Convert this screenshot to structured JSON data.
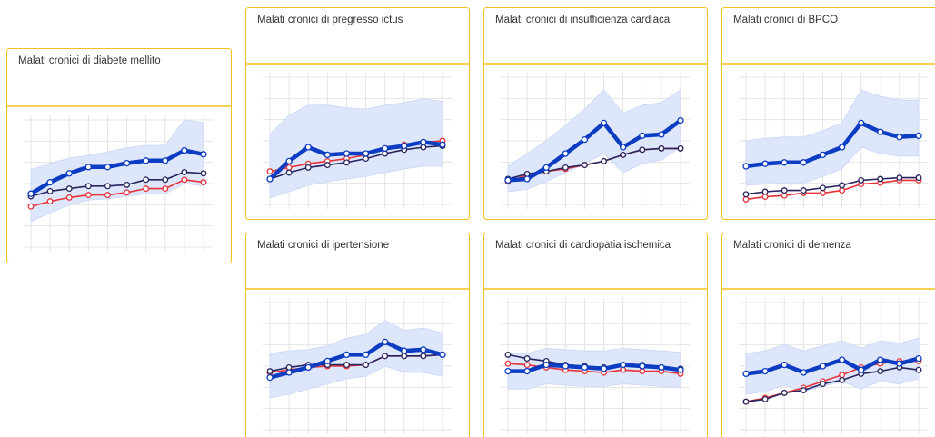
{
  "chart_data": [
    {
      "type": "line",
      "title": "Malati cronici di diabete mellito",
      "categories": [
        null,
        null,
        null,
        null,
        null,
        null,
        null,
        null,
        null,
        null
      ],
      "ylim": [
        0,
        100
      ],
      "band": {
        "color": "#dde6fb",
        "lower": [
          20,
          27,
          33,
          37,
          38,
          40,
          42,
          42,
          50,
          48
        ],
        "upper": [
          61,
          66,
          70,
          72,
          75,
          78,
          80,
          80,
          100,
          98
        ]
      },
      "series": [
        {
          "color": "#0b3cc1",
          "values": [
            42,
            51,
            58,
            63,
            63,
            66,
            68,
            68,
            76,
            73
          ]
        },
        {
          "color": "#27245e",
          "values": [
            40,
            44,
            46,
            48,
            48,
            49,
            53,
            53,
            59,
            58
          ]
        },
        {
          "color": "#e8333a",
          "values": [
            32,
            36,
            39,
            41,
            41,
            43,
            46,
            46,
            53,
            51
          ]
        }
      ]
    },
    {
      "type": "line",
      "title": "Malati cronici di pregresso ictus",
      "categories": [
        null,
        null,
        null,
        null,
        null,
        null,
        null,
        null,
        null,
        null
      ],
      "ylim": [
        0,
        100
      ],
      "band": {
        "color": "#dde6fb",
        "lower": [
          5,
          10,
          15,
          18,
          20,
          22,
          25,
          28,
          30,
          30
        ],
        "upper": [
          55,
          70,
          78,
          78,
          76,
          75,
          78,
          80,
          83,
          81
        ]
      },
      "series": [
        {
          "color": "#0b3cc1",
          "values": [
            20,
            34,
            45,
            39,
            40,
            40,
            44,
            46,
            49,
            47
          ]
        },
        {
          "color": "#27245e",
          "values": [
            20,
            25,
            29,
            31,
            33,
            36,
            40,
            43,
            45,
            46
          ]
        },
        {
          "color": "#e8333a",
          "values": [
            26,
            29,
            32,
            34,
            36,
            39,
            44,
            47,
            49,
            50
          ]
        }
      ]
    },
    {
      "type": "line",
      "title": "Malati cronici di insufficienza cardiaca",
      "categories": [
        null,
        null,
        null,
        null,
        null,
        null,
        null,
        null,
        null,
        null
      ],
      "ylim": [
        0,
        100
      ],
      "band": {
        "color": "#dde6fb",
        "lower": [
          10,
          12,
          18,
          25,
          32,
          40,
          25,
          32,
          35,
          45
        ],
        "upper": [
          30,
          40,
          50,
          62,
          75,
          90,
          72,
          78,
          80,
          90
        ]
      },
      "series": [
        {
          "color": "#0b3cc1",
          "values": [
            19,
            20,
            29,
            40,
            51,
            64,
            45,
            54,
            55,
            66
          ]
        },
        {
          "color": "#27245e",
          "values": [
            20,
            24,
            26,
            29,
            31,
            34,
            39,
            43,
            44,
            44
          ]
        },
        {
          "color": "#e8333a",
          "values": [
            18,
            23,
            26,
            28,
            31,
            34,
            39,
            43,
            44,
            44
          ]
        }
      ]
    },
    {
      "type": "line",
      "title": "Malati cronici di BPCO",
      "categories": [
        null,
        null,
        null,
        null,
        null,
        null,
        null,
        null,
        null,
        null
      ],
      "ylim": [
        0,
        100
      ],
      "band": {
        "color": "#dde6fb",
        "lower": [
          15,
          16,
          17,
          17,
          22,
          28,
          45,
          40,
          38,
          38
        ],
        "upper": [
          50,
          52,
          53,
          53,
          58,
          64,
          90,
          85,
          82,
          82
        ]
      },
      "series": [
        {
          "color": "#0b3cc1",
          "values": [
            30,
            32,
            33,
            33,
            39,
            45,
            64,
            57,
            53,
            54
          ]
        },
        {
          "color": "#27245e",
          "values": [
            8,
            10,
            11,
            11,
            13,
            15,
            19,
            20,
            21,
            21
          ]
        },
        {
          "color": "#e8333a",
          "values": [
            4,
            6,
            7,
            9,
            9,
            11,
            16,
            17,
            19,
            19
          ]
        }
      ]
    },
    {
      "type": "line",
      "title": "Malati cronici di ipertensione",
      "categories": [
        null,
        null,
        null,
        null,
        null,
        null,
        null,
        null,
        null,
        null
      ],
      "ylim": [
        0,
        100
      ],
      "band": {
        "color": "#dde6fb",
        "lower": [
          25,
          28,
          32,
          36,
          40,
          42,
          50,
          45,
          45,
          42
        ],
        "upper": [
          60,
          62,
          63,
          66,
          72,
          75,
          86,
          78,
          80,
          76
        ]
      },
      "series": [
        {
          "color": "#0b3cc1",
          "values": [
            41,
            45,
            49,
            54,
            59,
            59,
            69,
            62,
            63,
            59
          ]
        },
        {
          "color": "#27245e",
          "values": [
            46,
            49,
            51,
            51,
            51,
            51,
            58,
            58,
            58,
            59
          ]
        },
        {
          "color": "#e8333a",
          "values": [
            45,
            47,
            49,
            50,
            50,
            51,
            58,
            58,
            58,
            59
          ]
        }
      ]
    },
    {
      "type": "line",
      "title": "Malati cronici di cardiopatia ischemica",
      "categories": [
        null,
        null,
        null,
        null,
        null,
        null,
        null,
        null,
        null,
        null
      ],
      "ylim": [
        0,
        100
      ],
      "band": {
        "color": "#dde6fb",
        "lower": [
          32,
          32,
          36,
          35,
          34,
          34,
          36,
          35,
          34,
          33
        ],
        "upper": [
          60,
          60,
          64,
          63,
          62,
          62,
          64,
          63,
          62,
          61
        ]
      },
      "series": [
        {
          "color": "#0b3cc1",
          "values": [
            46,
            46,
            51,
            50,
            49,
            48,
            51,
            50,
            49,
            47
          ]
        },
        {
          "color": "#27245e",
          "values": [
            59,
            56,
            54,
            51,
            50,
            49,
            51,
            51,
            49,
            48
          ]
        },
        {
          "color": "#e8333a",
          "values": [
            52,
            51,
            49,
            47,
            46,
            45,
            47,
            46,
            46,
            44
          ]
        }
      ]
    },
    {
      "type": "line",
      "title": "Malati cronici di demenza",
      "categories": [
        null,
        null,
        null,
        null,
        null,
        null,
        null,
        null,
        null,
        null
      ],
      "ylim": [
        0,
        100
      ],
      "band": {
        "color": "#dde6fb",
        "lower": [
          28,
          30,
          35,
          30,
          34,
          38,
          32,
          38,
          36,
          40
        ],
        "upper": [
          60,
          62,
          67,
          62,
          66,
          70,
          64,
          70,
          68,
          72
        ]
      },
      "series": [
        {
          "color": "#0b3cc1",
          "values": [
            44,
            46,
            51,
            45,
            50,
            55,
            47,
            55,
            52,
            56
          ]
        },
        {
          "color": "#27245e",
          "values": [
            22,
            24,
            29,
            31,
            36,
            39,
            44,
            46,
            49,
            47
          ]
        },
        {
          "color": "#e8333a",
          "values": [
            22,
            25,
            29,
            33,
            38,
            43,
            49,
            52,
            54,
            54
          ]
        }
      ]
    }
  ]
}
